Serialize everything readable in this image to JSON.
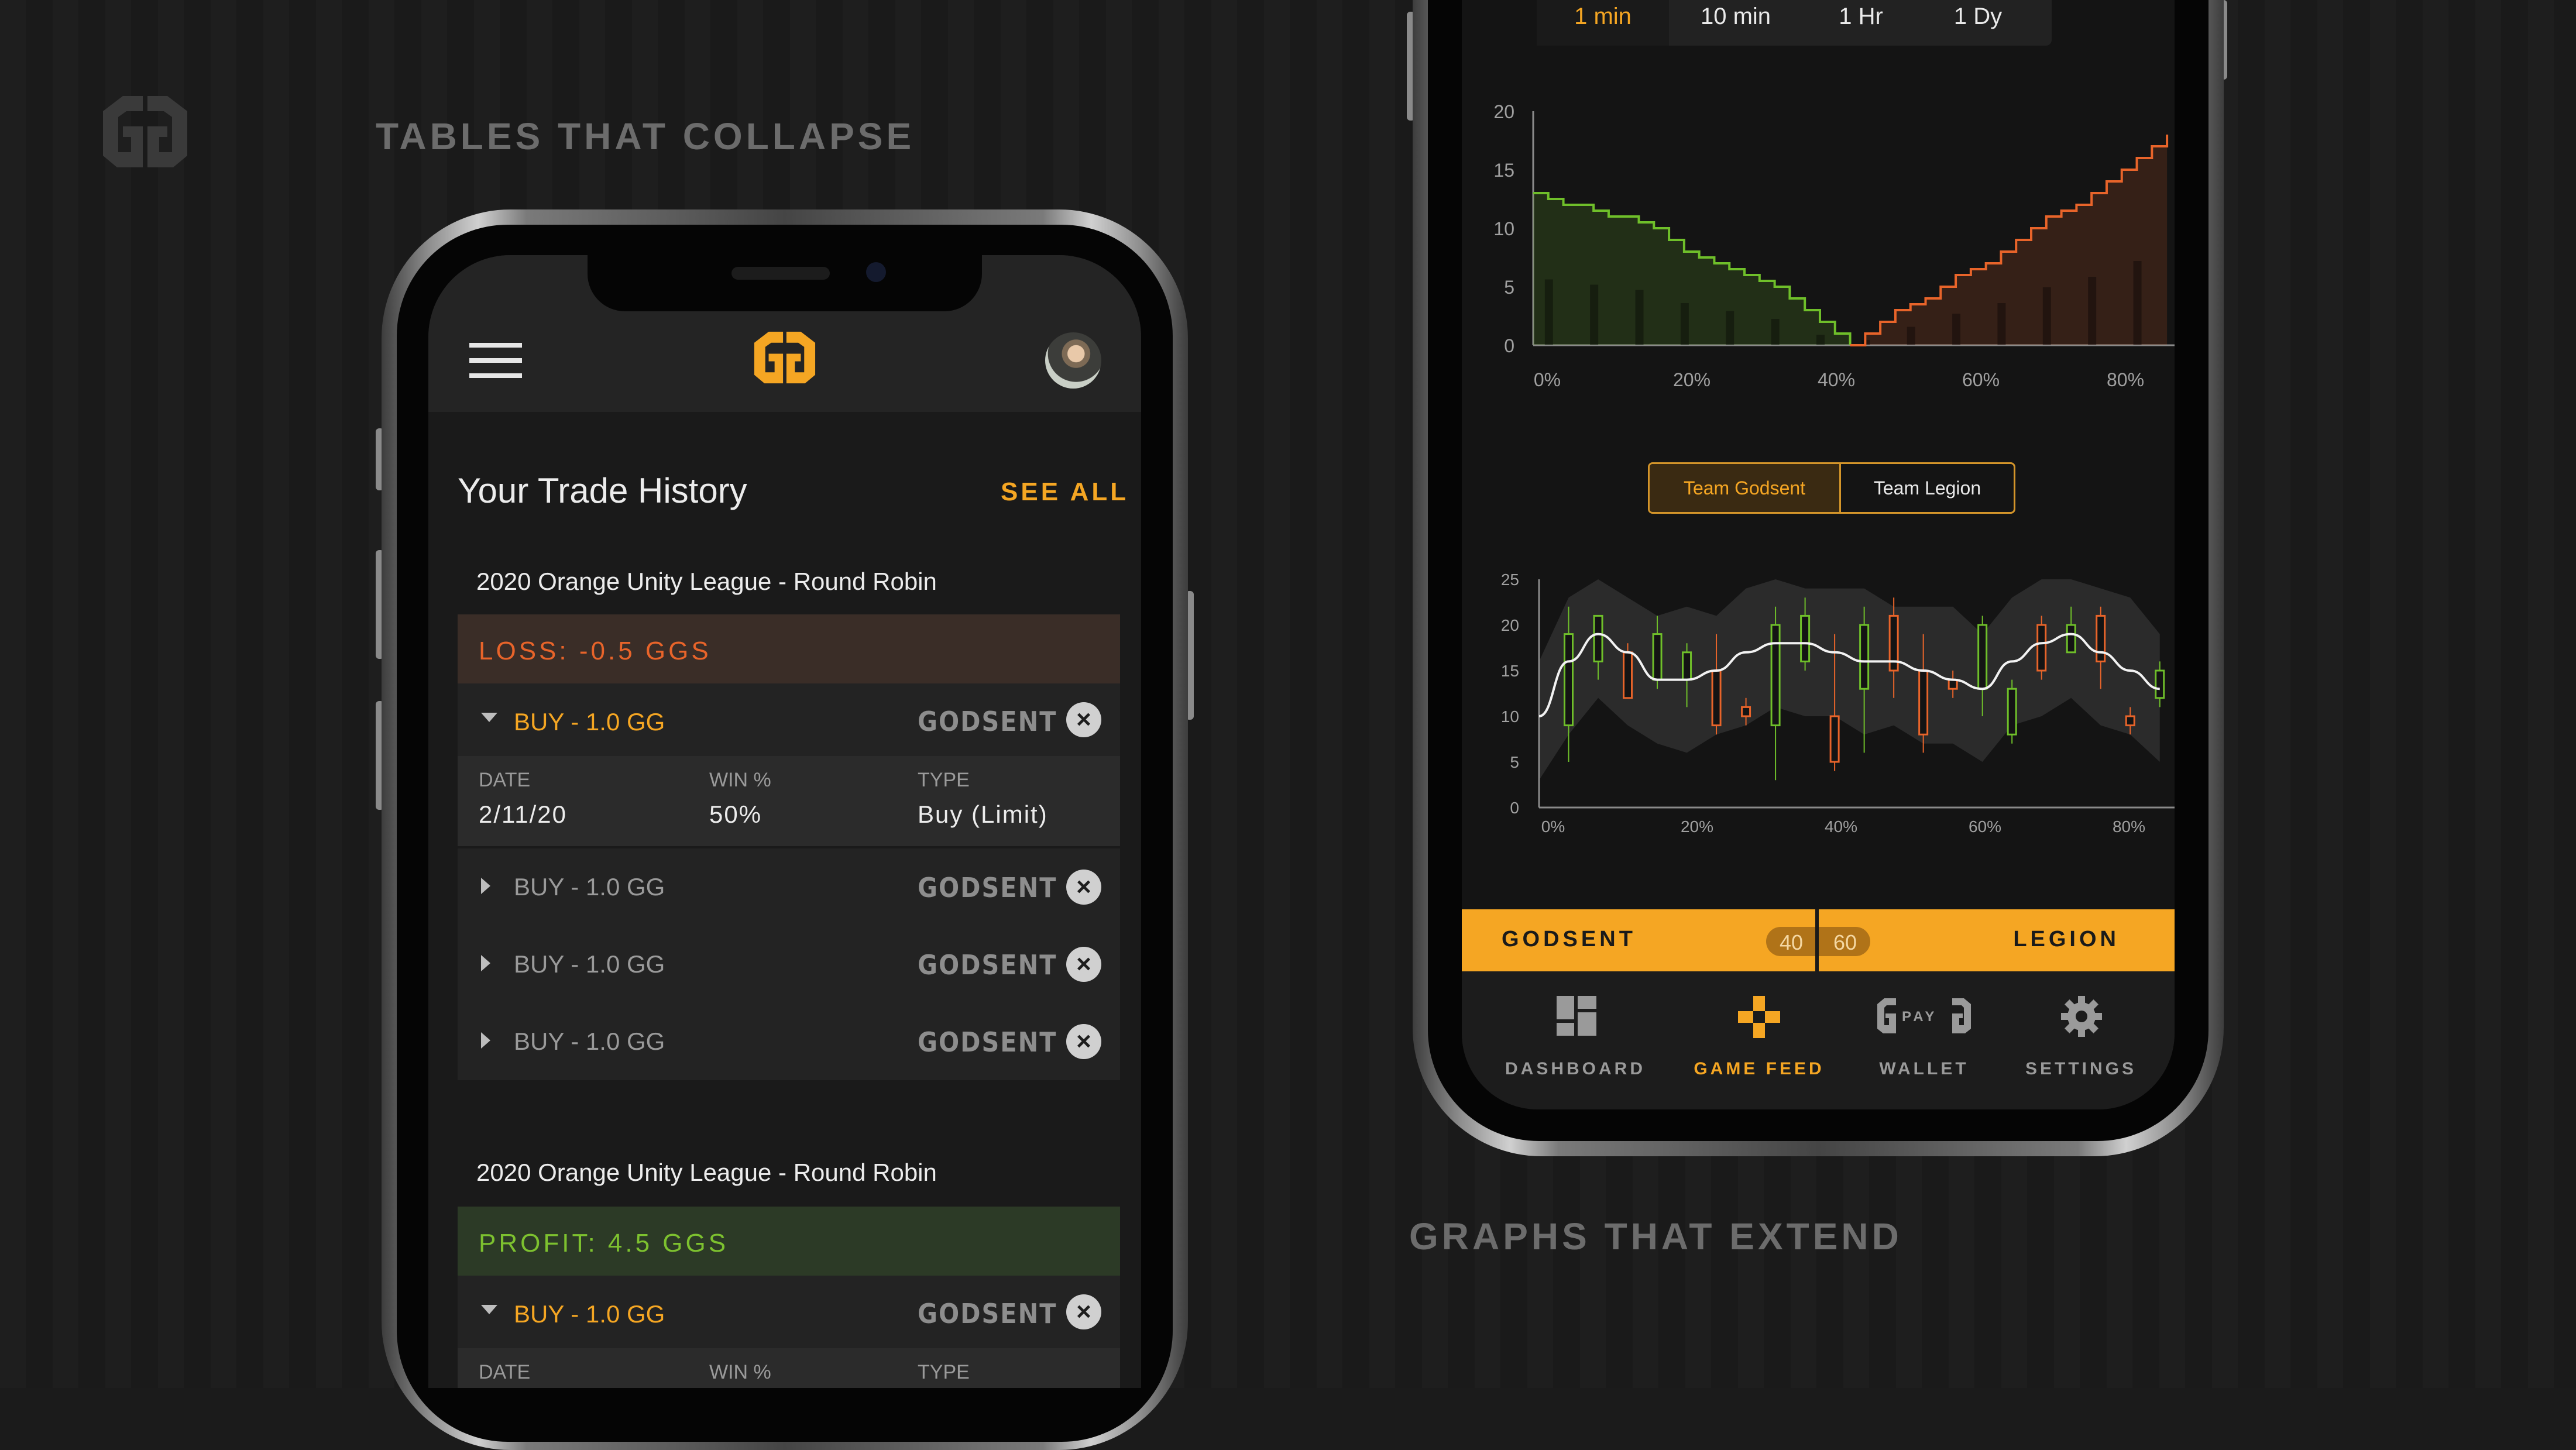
{
  "captions": {
    "left": "TABLES THAT COLLAPSE",
    "right": "GRAPHS THAT EXTEND"
  },
  "left_phone": {
    "header": {
      "menu_icon": "hamburger-icon",
      "logo_icon": "gg-logo-icon",
      "avatar_icon": "user-avatar"
    },
    "section": {
      "title": "Your Trade History",
      "see_all": "SEE ALL"
    },
    "groups": [
      {
        "event": "2020 Orange Unity League - Round Robin",
        "result": "LOSS: -0.5 GGS",
        "result_color": "#e8642a",
        "expanded": {
          "label": "BUY - 1.0 GG",
          "team": "GODSENT",
          "details": {
            "date_label": "DATE",
            "date": "2/11/20",
            "win_label": "WIN %",
            "win": "50%",
            "type_label": "TYPE",
            "type": "Buy (Limit)"
          }
        },
        "rows": [
          {
            "label": "BUY - 1.0 GG",
            "team": "GODSENT"
          },
          {
            "label": "BUY - 1.0 GG",
            "team": "GODSENT"
          },
          {
            "label": "BUY - 1.0 GG",
            "team": "GODSENT"
          }
        ]
      },
      {
        "event": "2020 Orange Unity League - Round Robin",
        "result": "PROFIT: 4.5 GGS",
        "result_color": "#7dc12f",
        "expanded": {
          "label": "BUY - 1.0 GG",
          "team": "GODSENT",
          "details": {
            "date_label": "DATE",
            "win_label": "WIN %",
            "type_label": "TYPE"
          }
        }
      }
    ]
  },
  "right_phone": {
    "timeframes": [
      {
        "label": "1 min",
        "active": true
      },
      {
        "label": "10 min"
      },
      {
        "label": "1 Hr"
      },
      {
        "label": "1 Dy"
      }
    ],
    "depth_chart": {
      "type": "area",
      "y_ticks": [
        "20",
        "15",
        "10",
        "5",
        "0"
      ],
      "x_ticks": [
        "0%",
        "20%",
        "40%",
        "60%",
        "80%"
      ],
      "ylim": [
        0,
        20
      ],
      "series": [
        {
          "color": "#6fbf2a",
          "x": [
            0,
            2,
            4,
            6,
            8,
            10,
            12,
            14,
            16,
            18,
            20,
            22,
            24,
            26,
            28,
            30,
            32,
            34,
            36,
            38,
            40,
            42
          ],
          "y": [
            13,
            12.5,
            12,
            12,
            11.5,
            11,
            11,
            10.5,
            10,
            9,
            8,
            7.5,
            7,
            6.5,
            6,
            5.5,
            5,
            4,
            3,
            2,
            1,
            0
          ]
        },
        {
          "color": "#e8642a",
          "x": [
            42,
            44,
            46,
            48,
            50,
            52,
            54,
            56,
            58,
            60,
            62,
            64,
            66,
            68,
            70,
            72,
            74,
            76,
            78,
            80,
            82,
            84
          ],
          "y": [
            0,
            1,
            2,
            3,
            3.5,
            4,
            5,
            6,
            6.5,
            7,
            8,
            9,
            10,
            11,
            11.5,
            12,
            13,
            14,
            15,
            16,
            17,
            18
          ]
        }
      ]
    },
    "team_toggle": [
      {
        "label": "Team Godsent",
        "active": true
      },
      {
        "label": "Team Legion"
      }
    ],
    "candle_chart": {
      "type": "candlestick",
      "y_ticks": [
        "25",
        "20",
        "15",
        "10",
        "5",
        "0"
      ],
      "x_ticks": [
        "0%",
        "20%",
        "40%",
        "60%",
        "80%"
      ],
      "ylim": [
        0,
        25
      ],
      "candles": [
        {
          "x": 4,
          "low": 5,
          "high": 22,
          "open": 9,
          "close": 19,
          "up": true
        },
        {
          "x": 8,
          "low": 14,
          "high": 21,
          "open": 16,
          "close": 21,
          "up": true
        },
        {
          "x": 12,
          "low": 12,
          "high": 18,
          "open": 17,
          "close": 12,
          "up": false
        },
        {
          "x": 16,
          "low": 13,
          "high": 21,
          "open": 14,
          "close": 19,
          "up": true
        },
        {
          "x": 20,
          "low": 11,
          "high": 18,
          "open": 14,
          "close": 17,
          "up": true
        },
        {
          "x": 24,
          "low": 8,
          "high": 19,
          "open": 15,
          "close": 9,
          "up": false
        },
        {
          "x": 28,
          "low": 9,
          "high": 12,
          "open": 11,
          "close": 10,
          "up": false
        },
        {
          "x": 32,
          "low": 3,
          "high": 22,
          "open": 9,
          "close": 20,
          "up": true
        },
        {
          "x": 36,
          "low": 15,
          "high": 23,
          "open": 16,
          "close": 21,
          "up": true
        },
        {
          "x": 40,
          "low": 4,
          "high": 19,
          "open": 10,
          "close": 5,
          "up": false
        },
        {
          "x": 44,
          "low": 6,
          "high": 22,
          "open": 13,
          "close": 20,
          "up": true
        },
        {
          "x": 48,
          "low": 12,
          "high": 23,
          "open": 21,
          "close": 15,
          "up": false
        },
        {
          "x": 52,
          "low": 6,
          "high": 19,
          "open": 15,
          "close": 8,
          "up": false
        },
        {
          "x": 56,
          "low": 12,
          "high": 15,
          "open": 14,
          "close": 13,
          "up": false
        },
        {
          "x": 60,
          "low": 10,
          "high": 21,
          "open": 13,
          "close": 20,
          "up": true
        },
        {
          "x": 64,
          "low": 7,
          "high": 14,
          "open": 8,
          "close": 13,
          "up": true
        },
        {
          "x": 68,
          "low": 14,
          "high": 21,
          "open": 20,
          "close": 15,
          "up": false
        },
        {
          "x": 72,
          "low": 17,
          "high": 22,
          "open": 17,
          "close": 20,
          "up": true
        },
        {
          "x": 76,
          "low": 13,
          "high": 22,
          "open": 21,
          "close": 16,
          "up": false
        },
        {
          "x": 80,
          "low": 8,
          "high": 11,
          "open": 10,
          "close": 9,
          "up": false
        },
        {
          "x": 84,
          "low": 11,
          "high": 16,
          "open": 12,
          "close": 15,
          "up": true
        }
      ],
      "line": {
        "x": [
          0,
          4,
          8,
          12,
          16,
          20,
          24,
          28,
          32,
          36,
          40,
          44,
          48,
          52,
          56,
          60,
          64,
          68,
          72,
          76,
          80,
          84
        ],
        "y": [
          10,
          16,
          19,
          17,
          14,
          14,
          15,
          17,
          18,
          18,
          17,
          16,
          16,
          15,
          14,
          13,
          16,
          18,
          19,
          17,
          15,
          13
        ]
      }
    },
    "sentiment": {
      "left": "GODSENT",
      "right": "LEGION",
      "left_pct": "40",
      "right_pct": "60"
    },
    "nav": [
      {
        "label": "DASHBOARD",
        "icon": "dashboard-icon"
      },
      {
        "label": "GAME FEED",
        "icon": "game-controller-icon",
        "active": true
      },
      {
        "label": "WALLET",
        "icon": "gpay-wallet-icon",
        "icon_text": "PAY"
      },
      {
        "label": "SETTINGS",
        "icon": "gear-icon"
      }
    ],
    "colors": {
      "accent": "#f5a623",
      "green": "#6fbf2a",
      "orange": "#e8642a",
      "loss": "#e8642a",
      "profit": "#7dc12f"
    }
  }
}
